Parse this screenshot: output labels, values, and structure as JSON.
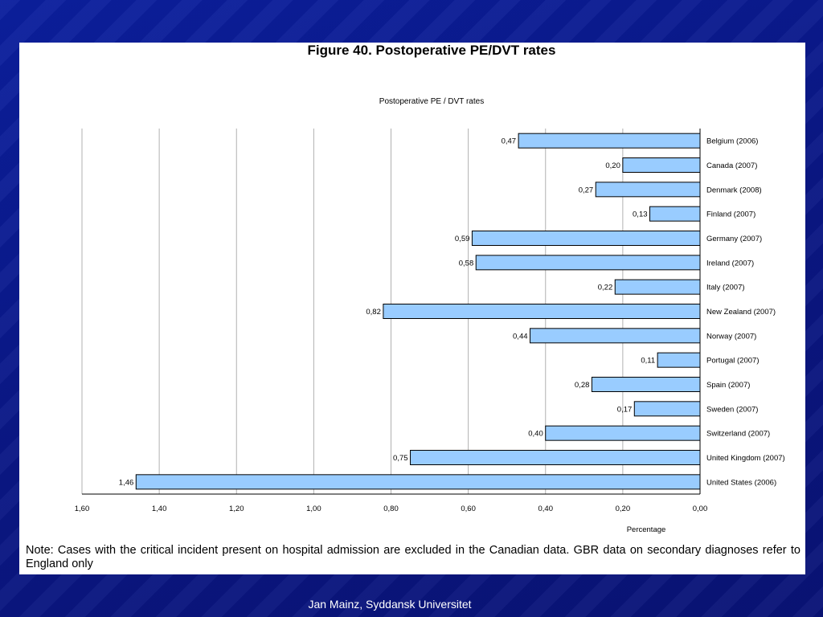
{
  "slide": {
    "figure_title": "Figure 40. Postoperative PE/DVT rates",
    "note": "Note: Cases with the critical incident present on hospital admission are excluded in the Canadian data. GBR data on secondary diagnoses refer to England only",
    "footer": "Jan Mainz, Syddansk Universitet",
    "colors": {
      "background": "#0a1a8c",
      "panel": "#ffffff",
      "bar_fill": "#99ccff",
      "bar_stroke": "#000000",
      "grid": "#b0b0b0"
    }
  },
  "chart_data": {
    "type": "bar",
    "orientation": "horizontal",
    "title": "Postoperative PE / DVT rates",
    "xlabel": "Percentage",
    "ylabel": "",
    "xlim": [
      0,
      1.6
    ],
    "x_reversed": true,
    "grid": true,
    "x_ticks": [
      1.6,
      1.4,
      1.2,
      1.0,
      0.8,
      0.6,
      0.4,
      0.2,
      0.0
    ],
    "x_tick_labels": [
      "1,60",
      "1,40",
      "1,20",
      "1,00",
      "0,80",
      "0,60",
      "0,40",
      "0,20",
      "0,00"
    ],
    "categories": [
      "Belgium (2006)",
      "Canada (2007)",
      "Denmark (2008)",
      "Finland (2007)",
      "Germany (2007)",
      "Ireland (2007)",
      "Italy (2007)",
      "New Zealand (2007)",
      "Norway (2007)",
      "Portugal (2007)",
      "Spain (2007)",
      "Sweden (2007)",
      "Switzerland (2007)",
      "United Kingdom (2007)",
      "United States (2006)"
    ],
    "values": [
      0.47,
      0.2,
      0.27,
      0.13,
      0.59,
      0.58,
      0.22,
      0.82,
      0.44,
      0.11,
      0.28,
      0.17,
      0.4,
      0.75,
      1.46
    ],
    "value_labels": [
      "0,47",
      "0,20",
      "0,27",
      "0,13",
      "0,59",
      "0,58",
      "0,22",
      "0,82",
      "0,44",
      "0,11",
      "0,28",
      "0,17",
      "0,40",
      "0,75",
      "1,46"
    ]
  }
}
